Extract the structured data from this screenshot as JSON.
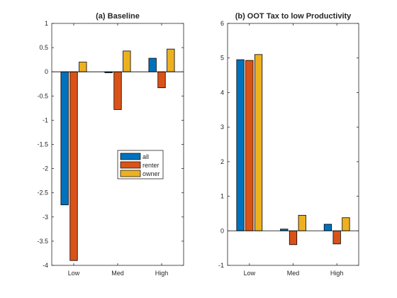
{
  "chart_data": [
    {
      "type": "bar",
      "title": "(a) Baseline",
      "xlabel": "",
      "ylabel": "",
      "categories": [
        "Low",
        "Med",
        "High"
      ],
      "ylim": [
        -4,
        1
      ],
      "yticks": [
        -4,
        -3.5,
        -3,
        -2.5,
        -2,
        -1.5,
        -1,
        -0.5,
        0,
        0.5,
        1
      ],
      "grid": false,
      "legend": "center-right",
      "series": [
        {
          "name": "all",
          "values": [
            -2.75,
            -0.02,
            0.28
          ],
          "color": "#0072BD"
        },
        {
          "name": "renter",
          "values": [
            -3.9,
            -0.78,
            -0.33
          ],
          "color": "#D95319"
        },
        {
          "name": "owner",
          "values": [
            0.2,
            0.43,
            0.47
          ],
          "color": "#EDB120"
        }
      ]
    },
    {
      "type": "bar",
      "title": "(b) OOT Tax to low Productivity",
      "xlabel": "",
      "ylabel": "",
      "categories": [
        "Low",
        "Med",
        "High"
      ],
      "ylim": [
        -1,
        6
      ],
      "yticks": [
        -1,
        0,
        1,
        2,
        3,
        4,
        5,
        6
      ],
      "grid": false,
      "series": [
        {
          "name": "all",
          "values": [
            4.95,
            0.05,
            0.19
          ],
          "color": "#0072BD"
        },
        {
          "name": "renter",
          "values": [
            4.93,
            -0.4,
            -0.38
          ],
          "color": "#D95319"
        },
        {
          "name": "owner",
          "values": [
            5.1,
            0.45,
            0.38
          ],
          "color": "#EDB120"
        }
      ]
    }
  ]
}
